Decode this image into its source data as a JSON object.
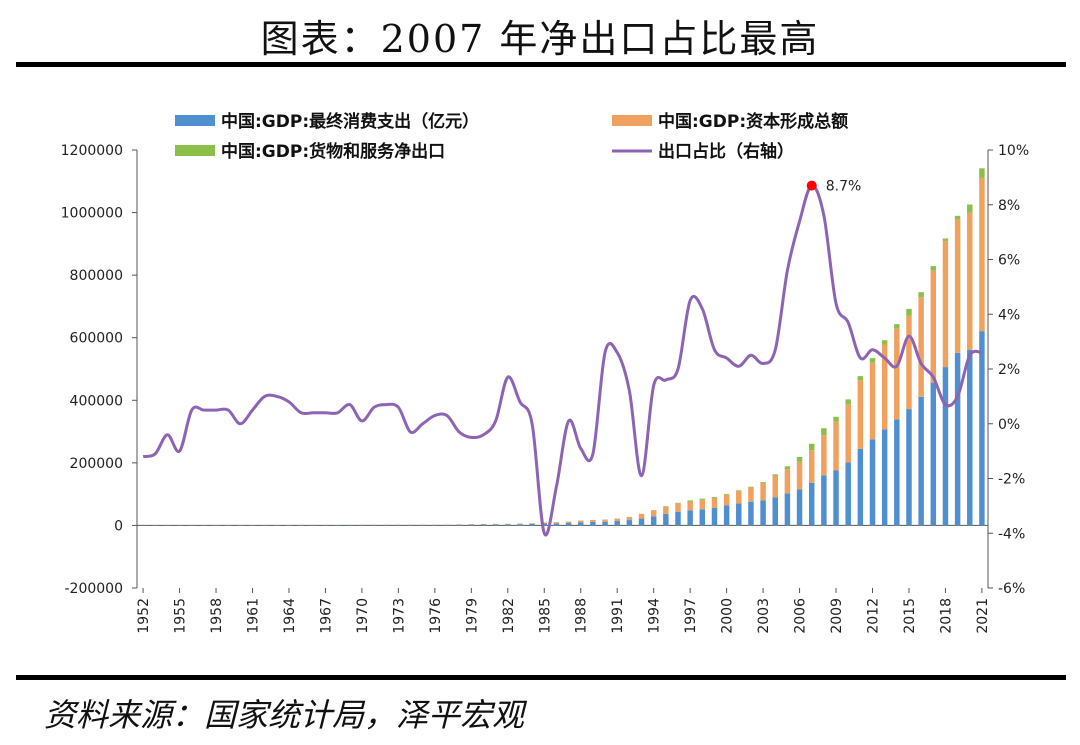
{
  "figure_title": "图表：2007 年净出口占比最高",
  "source_note": "资料来源：国家统计局，泽平宏观",
  "colors": {
    "consumption": "#4f8fcf",
    "capital": "#f0a15e",
    "net_export": "#8cbf4a",
    "ratio_line": "#8d64b3",
    "peak_marker": "#ff0000",
    "axis": "#555555",
    "text": "#222222"
  },
  "chart_data": {
    "type": "bar",
    "stacked": true,
    "x": [
      1952,
      1953,
      1954,
      1955,
      1956,
      1957,
      1958,
      1959,
      1960,
      1961,
      1962,
      1963,
      1964,
      1965,
      1966,
      1967,
      1968,
      1969,
      1970,
      1971,
      1972,
      1973,
      1974,
      1975,
      1976,
      1977,
      1978,
      1979,
      1980,
      1981,
      1982,
      1983,
      1984,
      1985,
      1986,
      1987,
      1988,
      1989,
      1990,
      1991,
      1992,
      1993,
      1994,
      1995,
      1996,
      1997,
      1998,
      1999,
      2000,
      2001,
      2002,
      2003,
      2004,
      2005,
      2006,
      2007,
      2008,
      2009,
      2010,
      2011,
      2012,
      2013,
      2014,
      2015,
      2016,
      2017,
      2018,
      2019,
      2020,
      2021
    ],
    "x_tick_labels": [
      "1952",
      "1955",
      "1958",
      "1961",
      "1964",
      "1967",
      "1970",
      "1973",
      "1976",
      "1979",
      "1982",
      "1985",
      "1988",
      "1991",
      "1994",
      "1997",
      "2000",
      "2003",
      "2006",
      "2009",
      "2012",
      "2015",
      "2018",
      "2021"
    ],
    "series": [
      {
        "name": "中国:GDP:最终消费支出（亿元）",
        "type": "bar",
        "axis": "left",
        "color": "#4f8fcf",
        "values": [
          540,
          620,
          680,
          700,
          780,
          820,
          840,
          890,
          970,
          960,
          930,
          960,
          1050,
          1150,
          1240,
          1270,
          1240,
          1310,
          1430,
          1500,
          1560,
          1680,
          1740,
          1840,
          1850,
          1930,
          2240,
          2630,
          2970,
          3310,
          3590,
          3980,
          4620,
          5980,
          6810,
          7870,
          10090,
          11580,
          12090,
          14090,
          17200,
          21900,
          29240,
          36750,
          43920,
          48140,
          51590,
          55640,
          63670,
          69920,
          75800,
          80290,
          90030,
          101880,
          115230,
          136360,
          160050,
          175630,
          201440,
          244600,
          275450,
          307200,
          339000,
          371900,
          410800,
          456500,
          506100,
          551500,
          560800,
          620900
        ]
      },
      {
        "name": "中国:GDP:资本形成总额",
        "type": "bar",
        "axis": "left",
        "color": "#f0a15e",
        "values": [
          150,
          210,
          240,
          250,
          300,
          260,
          460,
          590,
          540,
          240,
          170,
          240,
          320,
          410,
          490,
          380,
          360,
          410,
          700,
          740,
          740,
          820,
          860,
          950,
          890,
          980,
          1380,
          1480,
          1590,
          1580,
          1760,
          2000,
          2470,
          3390,
          3850,
          4320,
          5500,
          6090,
          6440,
          7520,
          9640,
          14980,
          19260,
          23880,
          26870,
          28460,
          30400,
          32000,
          34520,
          40380,
          45130,
          55840,
          69420,
          77530,
          87950,
          103950,
          128080,
          156730,
          185830,
          219670,
          244600,
          270920,
          290050,
          297830,
          318200,
          357890,
          402590,
          426680,
          439550,
          489900
        ]
      },
      {
        "name": "中国:GDP:货物和服务净出口",
        "type": "bar",
        "axis": "left",
        "color": "#8cbf4a",
        "values": [
          -10,
          -10,
          -5,
          -10,
          5,
          5,
          5,
          5,
          0,
          5,
          10,
          10,
          10,
          5,
          5,
          5,
          5,
          5,
          5,
          5,
          5,
          5,
          -5,
          5,
          5,
          5,
          -10,
          -20,
          -30,
          -5,
          90,
          50,
          0,
          -370,
          -260,
          10,
          -150,
          -190,
          510,
          620,
          280,
          -680,
          460,
          1000,
          1460,
          3550,
          3630,
          2830,
          2510,
          2180,
          2770,
          2550,
          3910,
          9550,
          15620,
          20710,
          22570,
          14880,
          15560,
          12880,
          14790,
          13880,
          14290,
          22410,
          16540,
          14430,
          8570,
          11400,
          25440,
          30740
        ]
      },
      {
        "name": "出口占比（右轴）",
        "type": "line",
        "axis": "right",
        "color": "#8d64b3",
        "unit": "%",
        "values": [
          -1.2,
          -1.1,
          -0.4,
          -1.0,
          0.5,
          0.5,
          0.5,
          0.5,
          0.0,
          0.5,
          1.0,
          1.0,
          0.8,
          0.4,
          0.4,
          0.4,
          0.4,
          0.7,
          0.1,
          0.6,
          0.7,
          0.6,
          -0.3,
          0.0,
          0.3,
          0.3,
          -0.3,
          -0.5,
          -0.4,
          0.1,
          1.7,
          0.8,
          0.0,
          -4.0,
          -2.3,
          0.1,
          -0.9,
          -1.1,
          2.6,
          2.6,
          1.2,
          -1.9,
          1.4,
          1.6,
          2.0,
          4.5,
          4.2,
          2.7,
          2.4,
          2.1,
          2.5,
          2.2,
          2.7,
          5.6,
          7.4,
          8.7,
          7.6,
          4.4,
          3.7,
          2.4,
          2.7,
          2.4,
          2.1,
          3.2,
          2.2,
          1.7,
          0.7,
          1.0,
          2.5,
          2.6
        ]
      }
    ],
    "left_axis": {
      "ylim": [
        -200000,
        1200000
      ],
      "ticks": [
        -200000,
        0,
        200000,
        400000,
        600000,
        800000,
        1000000,
        1200000
      ],
      "tick_labels": [
        "-200000",
        "0",
        "200000",
        "400000",
        "600000",
        "800000",
        "1000000",
        "1200000"
      ]
    },
    "right_axis": {
      "ylim": [
        -6,
        10
      ],
      "ticks": [
        -6,
        -4,
        -2,
        0,
        2,
        4,
        6,
        8,
        10
      ],
      "tick_labels": [
        "-6%",
        "-4%",
        "-2%",
        "0%",
        "2%",
        "4%",
        "6%",
        "8%",
        "10%"
      ]
    },
    "annotations": [
      {
        "x": 2007,
        "y": 8.7,
        "text": "8.7%",
        "axis": "right"
      }
    ],
    "legend_position": "top",
    "grid": false
  }
}
